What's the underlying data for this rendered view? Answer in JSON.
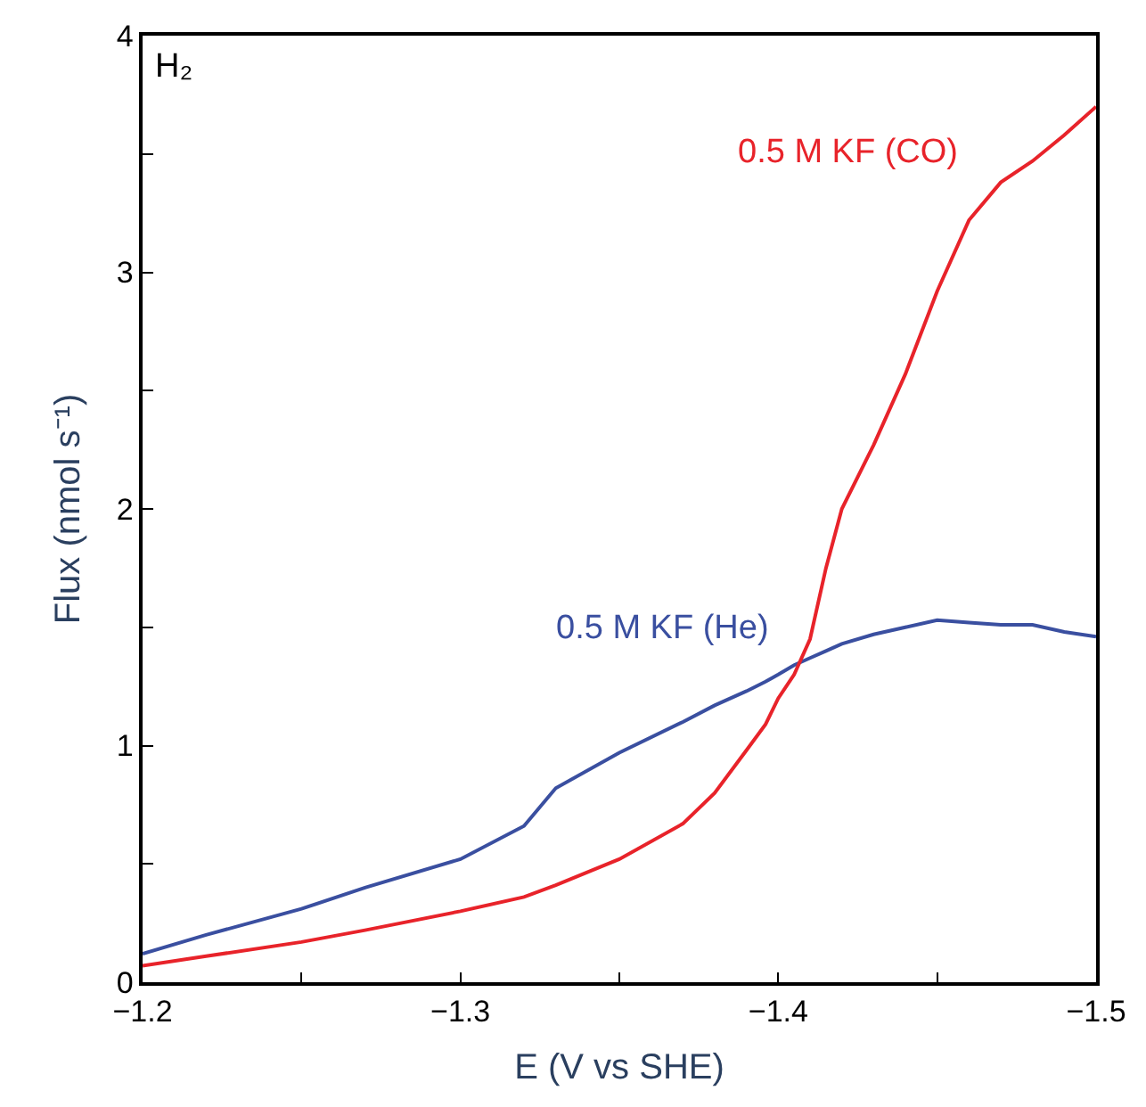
{
  "chart_data": {
    "type": "line",
    "xlabel": "E (V vs SHE)",
    "ylabel": "Flux (nmol s⁻¹)",
    "x": [
      -1.2,
      -1.22,
      -1.25,
      -1.27,
      -1.3,
      -1.32,
      -1.33,
      -1.35,
      -1.37,
      -1.38,
      -1.39,
      -1.396,
      -1.4,
      -1.405,
      -1.41,
      -1.415,
      -1.42,
      -1.43,
      -1.44,
      -1.45,
      -1.46,
      -1.47,
      -1.48,
      -1.49,
      -1.5
    ],
    "series": [
      {
        "name": "0.5 M KF (He)",
        "color": "#3a4fa0",
        "values": [
          0.12,
          0.2,
          0.31,
          0.4,
          0.52,
          0.66,
          0.82,
          0.97,
          1.1,
          1.17,
          1.23,
          1.27,
          1.3,
          1.34,
          1.37,
          1.4,
          1.43,
          1.47,
          1.5,
          1.53,
          1.52,
          1.51,
          1.51,
          1.48,
          1.46
        ]
      },
      {
        "name": "0.5 M KF (CO)",
        "color": "#e8232a",
        "values": [
          0.07,
          0.11,
          0.17,
          0.22,
          0.3,
          0.36,
          0.41,
          0.52,
          0.67,
          0.8,
          0.98,
          1.09,
          1.2,
          1.3,
          1.45,
          1.75,
          2.0,
          2.27,
          2.57,
          2.92,
          3.22,
          3.38,
          3.47,
          3.58,
          3.7
        ]
      }
    ],
    "annotations": [
      "H₂"
    ],
    "xlim": [
      -1.2,
      -1.5
    ],
    "xticks": [
      {
        "value": -1.2,
        "label": "−1.2"
      },
      {
        "value": -1.25,
        "label": null
      },
      {
        "value": -1.3,
        "label": "−1.3"
      },
      {
        "value": -1.35,
        "label": null
      },
      {
        "value": -1.4,
        "label": "−1.4"
      },
      {
        "value": -1.45,
        "label": null
      },
      {
        "value": -1.5,
        "label": "−1.5"
      }
    ],
    "ylim": [
      0,
      4
    ],
    "yticks": [
      0,
      {
        "value": 0.5,
        "label": null
      },
      1,
      {
        "value": 1.5,
        "label": null
      },
      2,
      {
        "value": 2.5,
        "label": null
      },
      3,
      {
        "value": 3.5,
        "label": null
      },
      4
    ],
    "legend": false,
    "marker": "none",
    "line_style": "solid"
  }
}
